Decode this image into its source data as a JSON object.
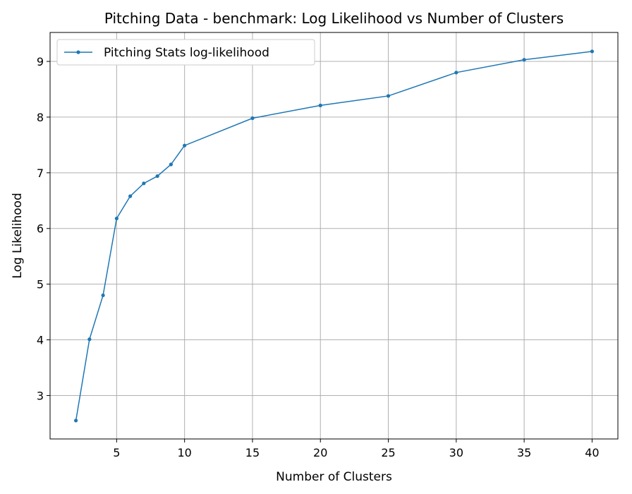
{
  "chart_data": {
    "type": "line",
    "title": "Pitching Data - benchmark: Log Likelihood vs Number of Clusters",
    "xlabel": "Number of Clusters",
    "ylabel": "Log Likelihood",
    "xlim": [
      0.1,
      41.9
    ],
    "ylim": [
      2.22,
      9.52
    ],
    "xticks": [
      5,
      10,
      15,
      20,
      25,
      30,
      35,
      40
    ],
    "yticks": [
      3,
      4,
      5,
      6,
      7,
      8,
      9
    ],
    "grid": true,
    "legend_position": "top-left",
    "series": [
      {
        "name": "Pitching Stats log-likelihood",
        "color": "#1f77b4",
        "marker": "dot",
        "x": [
          2,
          3,
          4,
          5,
          6,
          7,
          8,
          9,
          10,
          15,
          20,
          25,
          30,
          35,
          40
        ],
        "y": [
          2.55,
          4.01,
          4.8,
          6.18,
          6.58,
          6.81,
          6.94,
          7.15,
          7.49,
          7.98,
          8.21,
          8.38,
          8.8,
          9.03,
          9.18
        ]
      }
    ]
  }
}
